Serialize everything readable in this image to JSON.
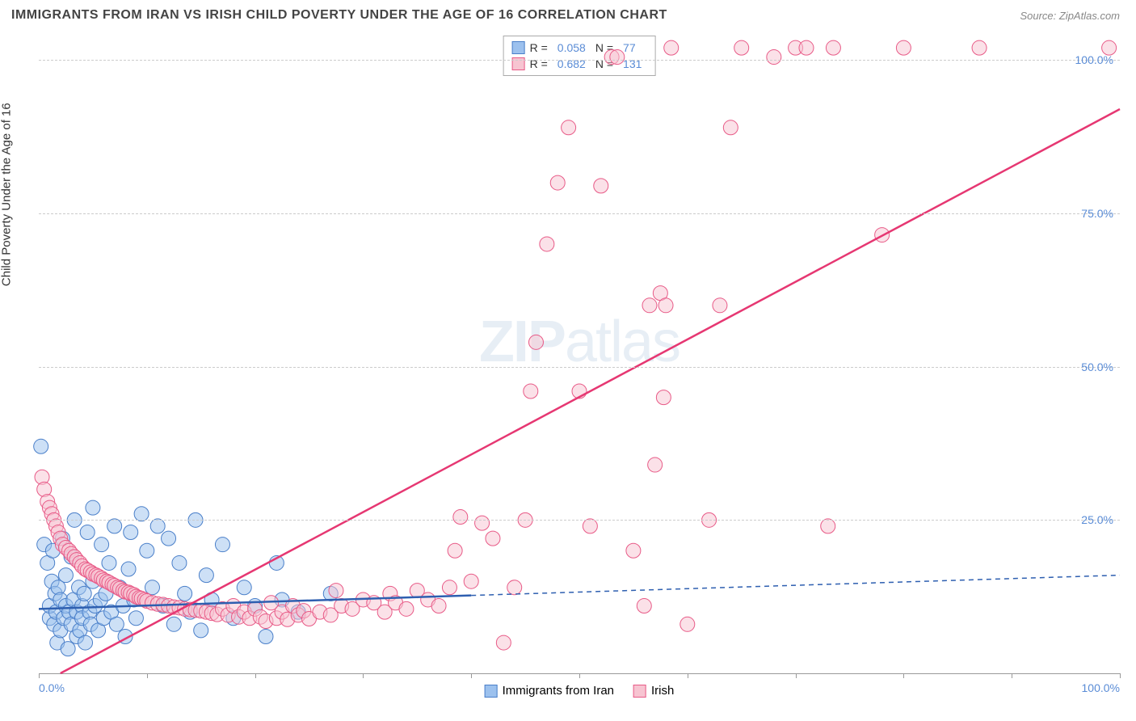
{
  "header": {
    "title": "IMMIGRANTS FROM IRAN VS IRISH CHILD POVERTY UNDER THE AGE OF 16 CORRELATION CHART",
    "source": "Source: ZipAtlas.com"
  },
  "watermark": {
    "zip": "ZIP",
    "atlas": "atlas"
  },
  "chart": {
    "type": "scatter",
    "y_axis_label": "Child Poverty Under the Age of 16",
    "background_color": "#ffffff",
    "grid_color": "#cccccc",
    "axis_color": "#999999",
    "xlim": [
      0,
      100
    ],
    "ylim": [
      0,
      104
    ],
    "y_ticks": [
      {
        "value": 25,
        "label": "25.0%"
      },
      {
        "value": 50,
        "label": "50.0%"
      },
      {
        "value": 75,
        "label": "75.0%"
      },
      {
        "value": 100,
        "label": "100.0%"
      }
    ],
    "x_ticks": [
      0,
      10,
      20,
      30,
      40,
      50,
      60,
      70,
      80,
      90,
      100
    ],
    "x_tick_labels": {
      "0": "0.0%",
      "100": "100.0%"
    },
    "label_color": "#5a8cd6",
    "label_fontsize": 14,
    "marker_radius": 9,
    "marker_opacity": 0.5,
    "series": [
      {
        "name": "Immigrants from Iran",
        "color_fill": "#9cc1ee",
        "color_stroke": "#4a7fc9",
        "line_color": "#2e5fb0",
        "line_dash_extend": true,
        "R": "0.058",
        "N": "77",
        "regression": {
          "x1": 0,
          "y1": 10.5,
          "x2": 100,
          "y2": 16.0,
          "solid_until_x": 40
        },
        "points": [
          [
            0.2,
            37
          ],
          [
            0.5,
            21
          ],
          [
            0.8,
            18
          ],
          [
            1,
            9
          ],
          [
            1,
            11
          ],
          [
            1.2,
            15
          ],
          [
            1.3,
            20
          ],
          [
            1.4,
            8
          ],
          [
            1.5,
            13
          ],
          [
            1.6,
            10
          ],
          [
            1.7,
            5
          ],
          [
            1.8,
            14
          ],
          [
            2,
            7
          ],
          [
            2,
            12
          ],
          [
            2.2,
            22
          ],
          [
            2.3,
            9
          ],
          [
            2.5,
            11
          ],
          [
            2.5,
            16
          ],
          [
            2.7,
            4
          ],
          [
            2.8,
            10
          ],
          [
            3,
            19
          ],
          [
            3,
            8
          ],
          [
            3.2,
            12
          ],
          [
            3.3,
            25
          ],
          [
            3.5,
            6
          ],
          [
            3.5,
            10
          ],
          [
            3.7,
            14
          ],
          [
            3.8,
            7
          ],
          [
            4,
            11
          ],
          [
            4,
            9
          ],
          [
            4.2,
            13
          ],
          [
            4.3,
            5
          ],
          [
            4.5,
            23
          ],
          [
            4.7,
            10
          ],
          [
            4.8,
            8
          ],
          [
            5,
            27
          ],
          [
            5,
            15
          ],
          [
            5.2,
            11
          ],
          [
            5.5,
            7
          ],
          [
            5.7,
            12
          ],
          [
            5.8,
            21
          ],
          [
            6,
            9
          ],
          [
            6.2,
            13
          ],
          [
            6.5,
            18
          ],
          [
            6.7,
            10
          ],
          [
            7,
            24
          ],
          [
            7.2,
            8
          ],
          [
            7.5,
            14
          ],
          [
            7.8,
            11
          ],
          [
            8,
            6
          ],
          [
            8.3,
            17
          ],
          [
            8.5,
            23
          ],
          [
            8.8,
            12
          ],
          [
            9,
            9
          ],
          [
            9.5,
            26
          ],
          [
            10,
            20
          ],
          [
            10.5,
            14
          ],
          [
            11,
            24
          ],
          [
            11.5,
            11
          ],
          [
            12,
            22
          ],
          [
            12.5,
            8
          ],
          [
            13,
            18
          ],
          [
            13.5,
            13
          ],
          [
            14,
            10
          ],
          [
            14.5,
            25
          ],
          [
            15,
            7
          ],
          [
            15.5,
            16
          ],
          [
            16,
            12
          ],
          [
            17,
            21
          ],
          [
            18,
            9
          ],
          [
            19,
            14
          ],
          [
            20,
            11
          ],
          [
            21,
            6
          ],
          [
            22,
            18
          ],
          [
            24,
            10
          ],
          [
            27,
            13
          ],
          [
            22.5,
            12
          ]
        ]
      },
      {
        "name": "Irish",
        "color_fill": "#f7c4d1",
        "color_stroke": "#e85a87",
        "line_color": "#e63772",
        "line_dash_extend": false,
        "R": "0.682",
        "N": "131",
        "regression": {
          "x1": 2,
          "y1": 0,
          "x2": 100,
          "y2": 92
        },
        "points": [
          [
            0.3,
            32
          ],
          [
            0.5,
            30
          ],
          [
            0.8,
            28
          ],
          [
            1,
            27
          ],
          [
            1.2,
            26
          ],
          [
            1.4,
            25
          ],
          [
            1.6,
            24
          ],
          [
            1.8,
            23
          ],
          [
            2,
            22
          ],
          [
            2.2,
            21
          ],
          [
            2.5,
            20.5
          ],
          [
            2.8,
            20
          ],
          [
            3,
            19.5
          ],
          [
            3.3,
            19
          ],
          [
            3.5,
            18.5
          ],
          [
            3.8,
            18
          ],
          [
            4,
            17.5
          ],
          [
            4.3,
            17
          ],
          [
            4.5,
            16.8
          ],
          [
            4.8,
            16.5
          ],
          [
            5,
            16.2
          ],
          [
            5.3,
            16
          ],
          [
            5.5,
            15.8
          ],
          [
            5.8,
            15.5
          ],
          [
            6,
            15.2
          ],
          [
            6.3,
            15
          ],
          [
            6.5,
            14.8
          ],
          [
            6.8,
            14.5
          ],
          [
            7,
            14.3
          ],
          [
            7.3,
            14
          ],
          [
            7.5,
            13.8
          ],
          [
            7.8,
            13.5
          ],
          [
            8,
            13.3
          ],
          [
            8.3,
            13.2
          ],
          [
            8.5,
            13
          ],
          [
            8.8,
            12.8
          ],
          [
            9,
            12.5
          ],
          [
            9.3,
            12.3
          ],
          [
            9.5,
            12.2
          ],
          [
            9.8,
            12
          ],
          [
            10,
            11.8
          ],
          [
            10.5,
            11.5
          ],
          [
            11,
            11.3
          ],
          [
            11.5,
            11.2
          ],
          [
            12,
            11
          ],
          [
            12.5,
            10.8
          ],
          [
            13,
            10.7
          ],
          [
            13.5,
            10.5
          ],
          [
            14,
            10.4
          ],
          [
            14.5,
            10.3
          ],
          [
            15,
            10.2
          ],
          [
            15.5,
            10
          ],
          [
            16,
            9.8
          ],
          [
            16.5,
            9.6
          ],
          [
            17,
            10.5
          ],
          [
            17.5,
            9.5
          ],
          [
            18,
            11
          ],
          [
            18.5,
            9.2
          ],
          [
            19,
            10
          ],
          [
            19.5,
            9
          ],
          [
            20,
            10.5
          ],
          [
            20.5,
            9.2
          ],
          [
            21,
            8.5
          ],
          [
            21.5,
            11.5
          ],
          [
            22,
            9
          ],
          [
            22.5,
            10
          ],
          [
            23,
            8.8
          ],
          [
            23.5,
            11
          ],
          [
            24,
            9.5
          ],
          [
            24.5,
            10.2
          ],
          [
            25,
            8.9
          ],
          [
            26,
            10
          ],
          [
            27,
            9.5
          ],
          [
            27.5,
            13.5
          ],
          [
            28,
            11
          ],
          [
            29,
            10.5
          ],
          [
            30,
            12
          ],
          [
            31,
            11.5
          ],
          [
            32,
            10
          ],
          [
            32.5,
            13
          ],
          [
            33,
            11.5
          ],
          [
            34,
            10.5
          ],
          [
            35,
            13.5
          ],
          [
            36,
            12
          ],
          [
            37,
            11
          ],
          [
            38,
            14
          ],
          [
            38.5,
            20
          ],
          [
            39,
            25.5
          ],
          [
            40,
            15
          ],
          [
            41,
            24.5
          ],
          [
            42,
            22
          ],
          [
            43,
            5
          ],
          [
            44,
            14
          ],
          [
            45,
            25
          ],
          [
            45.5,
            46
          ],
          [
            46,
            54
          ],
          [
            47,
            70
          ],
          [
            48,
            80
          ],
          [
            49,
            89
          ],
          [
            50,
            46
          ],
          [
            51,
            24
          ],
          [
            52,
            79.5
          ],
          [
            53,
            100.5
          ],
          [
            53.5,
            100.5
          ],
          [
            55,
            20
          ],
          [
            56,
            11
          ],
          [
            56.5,
            60
          ],
          [
            57,
            34
          ],
          [
            57.5,
            62
          ],
          [
            57.8,
            45
          ],
          [
            58,
            60
          ],
          [
            58.5,
            102
          ],
          [
            60,
            8
          ],
          [
            62,
            25
          ],
          [
            63,
            60
          ],
          [
            64,
            89
          ],
          [
            65,
            102
          ],
          [
            68,
            100.5
          ],
          [
            70,
            102
          ],
          [
            71,
            102
          ],
          [
            73,
            24
          ],
          [
            73.5,
            102
          ],
          [
            78,
            71.5
          ],
          [
            80,
            102
          ],
          [
            87,
            102
          ],
          [
            99,
            102
          ]
        ]
      }
    ]
  },
  "bottom_legend": {
    "items": [
      {
        "label": "Immigrants from Iran",
        "fill": "#9cc1ee",
        "stroke": "#4a7fc9"
      },
      {
        "label": "Irish",
        "fill": "#f7c4d1",
        "stroke": "#e85a87"
      }
    ]
  }
}
